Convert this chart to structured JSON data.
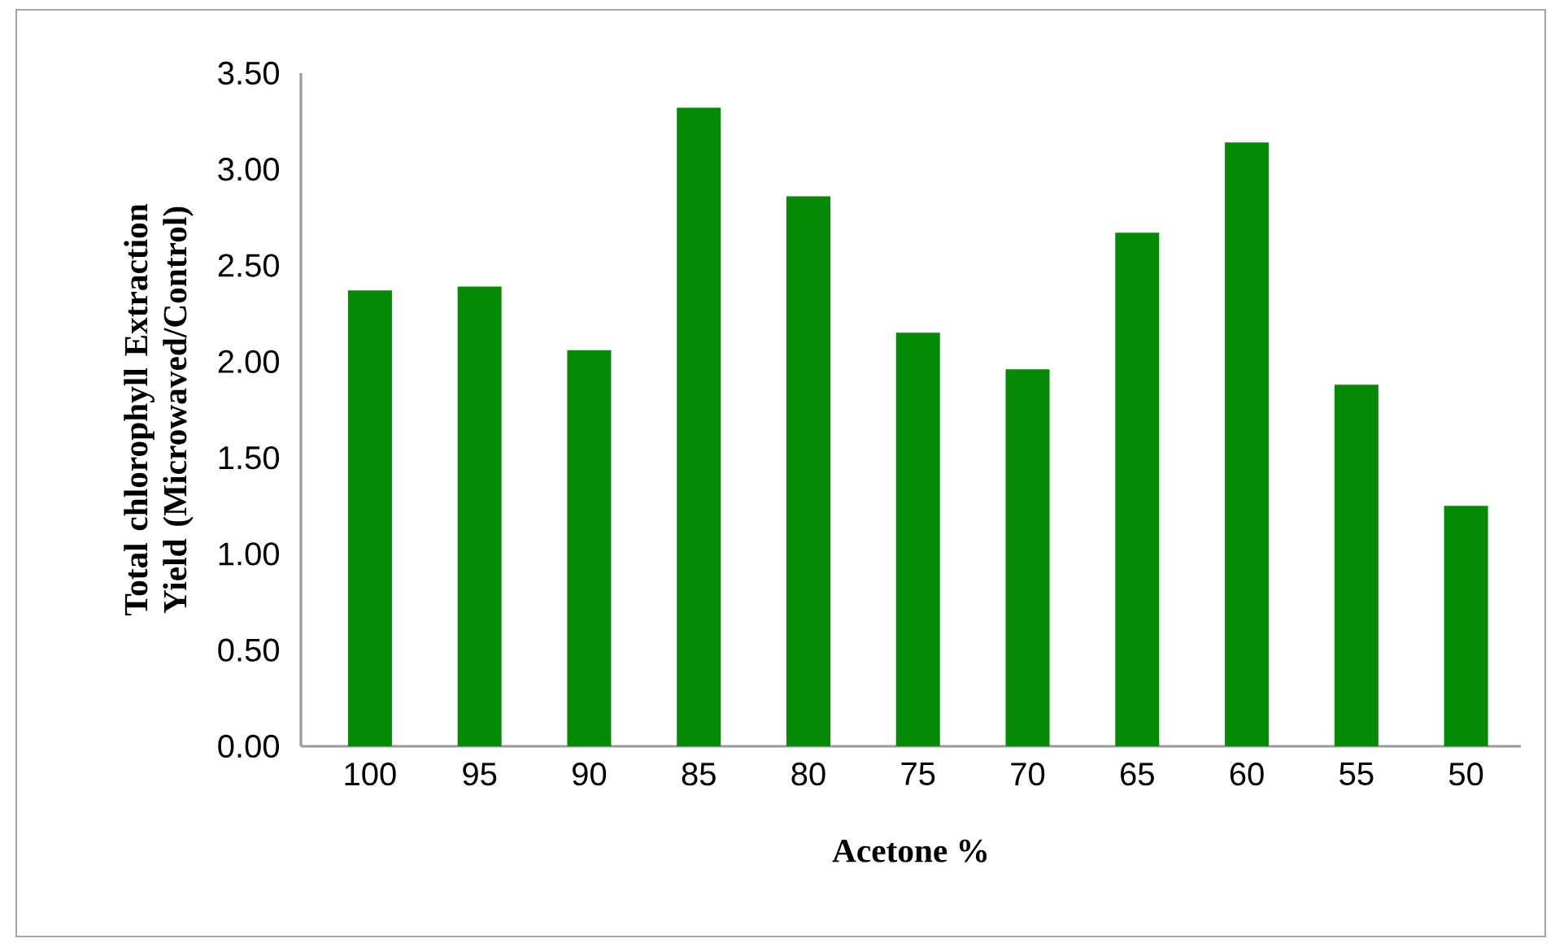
{
  "chart_data": {
    "type": "bar",
    "xlabel": "Acetone %",
    "ylabel": "Total chlorophyll Extraction Yield (Microwaved/Control)",
    "categories": [
      "100",
      "95",
      "90",
      "85",
      "80",
      "75",
      "70",
      "65",
      "60",
      "55",
      "50"
    ],
    "values": [
      2.37,
      2.39,
      2.06,
      3.32,
      2.86,
      2.15,
      1.96,
      2.67,
      3.14,
      1.88,
      1.25
    ],
    "color": "#058a06",
    "ylim": [
      0,
      3.5
    ],
    "yticks": [
      {
        "value": 0,
        "label": "0.00"
      },
      {
        "value": 0.5,
        "label": "0.50"
      },
      {
        "value": 1,
        "label": "1.00"
      },
      {
        "value": 1.5,
        "label": "1.50"
      },
      {
        "value": 2,
        "label": "2.00"
      },
      {
        "value": 2.5,
        "label": "2.50"
      },
      {
        "value": 3,
        "label": "3.00"
      },
      {
        "value": 3.5,
        "label": "3.50"
      }
    ],
    "grid": false
  }
}
